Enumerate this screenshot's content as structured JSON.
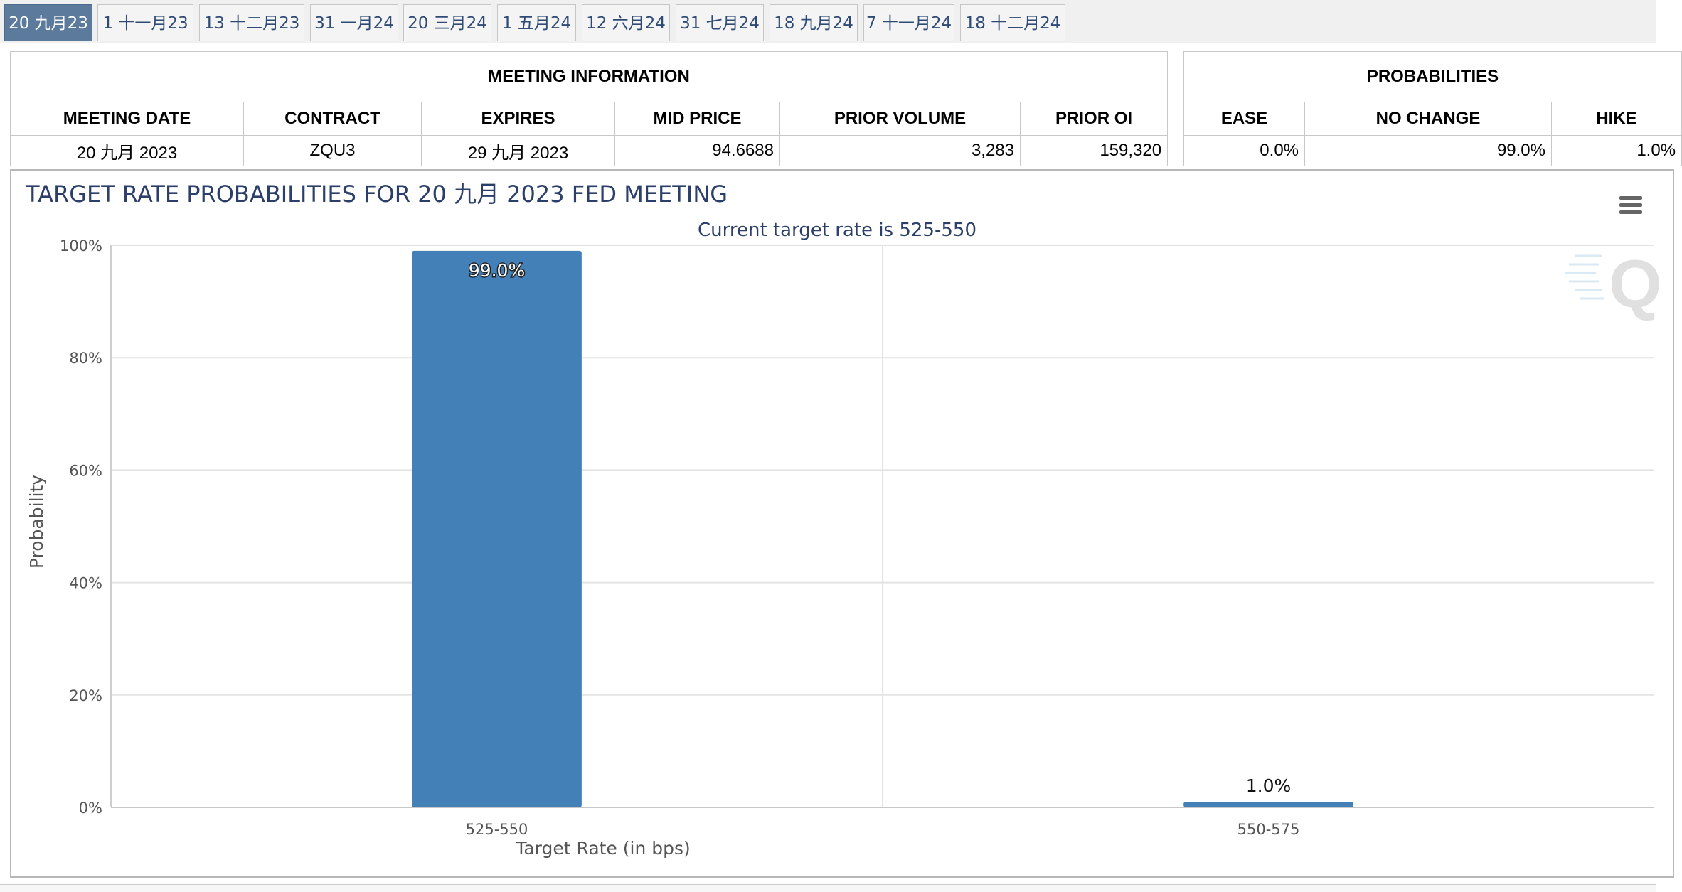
{
  "tabs": [
    {
      "label": "20 九月23",
      "active": true
    },
    {
      "label": "1 十一月23",
      "active": false
    },
    {
      "label": "13 十二月23",
      "active": false
    },
    {
      "label": "31 一月24",
      "active": false
    },
    {
      "label": "20 三月24",
      "active": false
    },
    {
      "label": "1 五月24",
      "active": false
    },
    {
      "label": "12 六月24",
      "active": false
    },
    {
      "label": "31 七月24",
      "active": false
    },
    {
      "label": "18 九月24",
      "active": false
    },
    {
      "label": "7 十一月24",
      "active": false
    },
    {
      "label": "18 十二月24",
      "active": false
    }
  ],
  "meeting_info": {
    "group_title": "MEETING INFORMATION",
    "headers": [
      "MEETING DATE",
      "CONTRACT",
      "EXPIRES",
      "MID PRICE",
      "PRIOR VOLUME",
      "PRIOR OI"
    ],
    "row": [
      "20 九月 2023",
      "ZQU3",
      "29 九月 2023",
      "94.6688",
      "3,283",
      "159,320"
    ]
  },
  "probabilities": {
    "group_title": "PROBABILITIES",
    "headers": [
      "EASE",
      "NO CHANGE",
      "HIKE"
    ],
    "row": [
      "0.0%",
      "99.0%",
      "1.0%"
    ]
  },
  "menu_icon": "hamburger-menu-icon",
  "watermark_icon": "q-logo-watermark",
  "colors": {
    "bar": "#4380b7",
    "title": "#2b3f6a",
    "active_tab": "#5c7a9b"
  },
  "chart_data": {
    "type": "bar",
    "title": "TARGET RATE PROBABILITIES FOR 20 九月 2023 FED MEETING",
    "subtitle": "Current target rate is 525-550",
    "xlabel": "Target Rate (in bps)",
    "ylabel": "Probability",
    "categories": [
      "525-550",
      "550-575"
    ],
    "values": [
      99.0,
      1.0
    ],
    "data_labels": [
      "99.0%",
      "1.0%"
    ],
    "ylim": [
      0,
      100
    ],
    "yticks": [
      "0%",
      "20%",
      "40%",
      "60%",
      "80%",
      "100%"
    ],
    "grid": true,
    "legend": false
  }
}
